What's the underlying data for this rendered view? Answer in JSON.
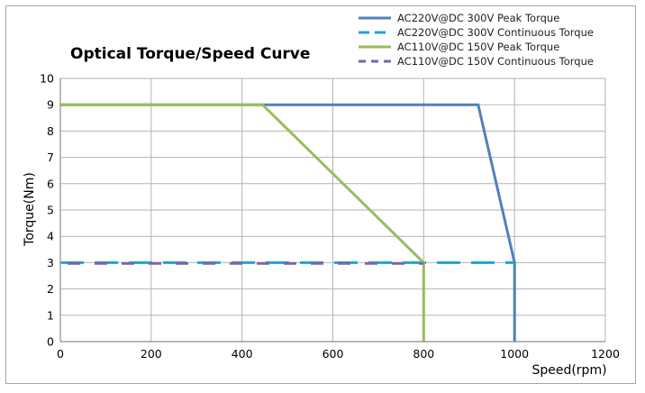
{
  "chart_data": {
    "type": "line",
    "title": "Optical Torque/Speed Curve",
    "xlabel": "Speed(rpm)",
    "ylabel": "Torque(Nm)",
    "xlim": [
      0,
      1200
    ],
    "ylim": [
      0,
      10
    ],
    "xticks": [
      0,
      200,
      400,
      600,
      800,
      1000,
      1200
    ],
    "yticks": [
      0,
      1,
      2,
      3,
      4,
      5,
      6,
      7,
      8,
      9,
      10
    ],
    "grid": true,
    "legend_position": "top-right",
    "series": [
      {
        "name": "AC220V@DC 300V Peak Torque",
        "color": "#4f81bd",
        "style": "solid",
        "x": [
          0,
          920,
          1000,
          1000
        ],
        "y": [
          9,
          9,
          3,
          0
        ]
      },
      {
        "name": "AC220V@DC 300V Continuous Torque",
        "color": "#1fa4dc",
        "style": "dashed",
        "x": [
          0,
          1000
        ],
        "y": [
          3,
          3
        ]
      },
      {
        "name": "AC110V@DC 150V Peak Torque",
        "color": "#9bbb59",
        "style": "solid",
        "x": [
          0,
          445,
          800,
          800
        ],
        "y": [
          9,
          9,
          3,
          0
        ]
      },
      {
        "name": "AC110V@DC 150V Continuous Torque",
        "color": "#8064a2",
        "style": "dashed",
        "x": [
          0,
          800
        ],
        "y": [
          2.97,
          2.97
        ]
      }
    ]
  }
}
